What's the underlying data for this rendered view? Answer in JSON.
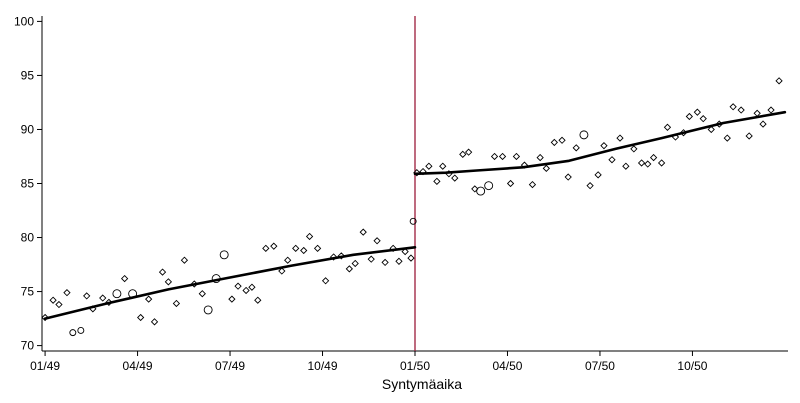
{
  "chart_data": {
    "type": "scatter",
    "xlabel": "Syntymäaika",
    "ylabel": "",
    "x_ticks": [
      {
        "month": 0,
        "label": "01/49"
      },
      {
        "month": 3,
        "label": "04/49"
      },
      {
        "month": 6,
        "label": "07/49"
      },
      {
        "month": 9,
        "label": "10/49"
      },
      {
        "month": 12,
        "label": "01/50"
      },
      {
        "month": 15,
        "label": "04/50"
      },
      {
        "month": 18,
        "label": "07/50"
      },
      {
        "month": 21,
        "label": "10/50"
      }
    ],
    "xlim": [
      -0.1,
      24.1
    ],
    "ylim": [
      69.5,
      100.5
    ],
    "y_ticks": [
      70,
      75,
      80,
      85,
      90,
      95,
      100
    ],
    "grid": false,
    "cutoff_x": 12,
    "cutoff_color": "#9b1b3a",
    "points": [
      {
        "x": 0.0,
        "y": 72.6,
        "shape": "diamond",
        "s": 3
      },
      {
        "x": 0.26,
        "y": 74.2,
        "shape": "diamond",
        "s": 3
      },
      {
        "x": 0.45,
        "y": 73.8,
        "shape": "diamond",
        "s": 3
      },
      {
        "x": 0.71,
        "y": 74.9,
        "shape": "diamond",
        "s": 3
      },
      {
        "x": 0.9,
        "y": 71.2,
        "shape": "circle",
        "s": 3
      },
      {
        "x": 1.16,
        "y": 71.4,
        "shape": "circle",
        "s": 3
      },
      {
        "x": 1.35,
        "y": 74.6,
        "shape": "diamond",
        "s": 3
      },
      {
        "x": 1.55,
        "y": 73.4,
        "shape": "diamond",
        "s": 3
      },
      {
        "x": 1.87,
        "y": 74.4,
        "shape": "diamond",
        "s": 3
      },
      {
        "x": 2.07,
        "y": 74.0,
        "shape": "diamond",
        "s": 3
      },
      {
        "x": 2.33,
        "y": 74.8,
        "shape": "circle",
        "s": 4
      },
      {
        "x": 2.58,
        "y": 76.2,
        "shape": "diamond",
        "s": 3
      },
      {
        "x": 2.84,
        "y": 74.8,
        "shape": "circle",
        "s": 4
      },
      {
        "x": 3.1,
        "y": 72.6,
        "shape": "diamond",
        "s": 3
      },
      {
        "x": 3.36,
        "y": 74.3,
        "shape": "diamond",
        "s": 3
      },
      {
        "x": 3.55,
        "y": 72.2,
        "shape": "diamond",
        "s": 3
      },
      {
        "x": 3.81,
        "y": 76.8,
        "shape": "diamond",
        "s": 3
      },
      {
        "x": 4.0,
        "y": 75.9,
        "shape": "diamond",
        "s": 3
      },
      {
        "x": 4.26,
        "y": 73.9,
        "shape": "diamond",
        "s": 3
      },
      {
        "x": 4.52,
        "y": 77.9,
        "shape": "diamond",
        "s": 3
      },
      {
        "x": 4.84,
        "y": 75.7,
        "shape": "diamond",
        "s": 3
      },
      {
        "x": 5.1,
        "y": 74.8,
        "shape": "diamond",
        "s": 3
      },
      {
        "x": 5.29,
        "y": 73.3,
        "shape": "circle",
        "s": 4
      },
      {
        "x": 5.55,
        "y": 76.2,
        "shape": "circle",
        "s": 4
      },
      {
        "x": 5.81,
        "y": 78.4,
        "shape": "circle",
        "s": 4
      },
      {
        "x": 6.06,
        "y": 74.3,
        "shape": "diamond",
        "s": 3
      },
      {
        "x": 6.26,
        "y": 75.5,
        "shape": "diamond",
        "s": 3
      },
      {
        "x": 6.52,
        "y": 75.1,
        "shape": "diamond",
        "s": 3
      },
      {
        "x": 6.71,
        "y": 75.4,
        "shape": "diamond",
        "s": 3
      },
      {
        "x": 6.9,
        "y": 74.2,
        "shape": "diamond",
        "s": 3
      },
      {
        "x": 7.16,
        "y": 79.0,
        "shape": "diamond",
        "s": 3
      },
      {
        "x": 7.42,
        "y": 79.2,
        "shape": "diamond",
        "s": 3
      },
      {
        "x": 7.68,
        "y": 76.9,
        "shape": "diamond",
        "s": 3
      },
      {
        "x": 7.87,
        "y": 77.9,
        "shape": "diamond",
        "s": 3
      },
      {
        "x": 8.13,
        "y": 79.0,
        "shape": "diamond",
        "s": 3
      },
      {
        "x": 8.39,
        "y": 78.8,
        "shape": "diamond",
        "s": 3
      },
      {
        "x": 8.58,
        "y": 80.1,
        "shape": "diamond",
        "s": 3
      },
      {
        "x": 8.84,
        "y": 79.0,
        "shape": "diamond",
        "s": 3
      },
      {
        "x": 9.1,
        "y": 76.0,
        "shape": "diamond",
        "s": 3
      },
      {
        "x": 9.36,
        "y": 78.2,
        "shape": "diamond",
        "s": 3
      },
      {
        "x": 9.61,
        "y": 78.3,
        "shape": "diamond",
        "s": 3
      },
      {
        "x": 9.87,
        "y": 77.1,
        "shape": "diamond",
        "s": 3
      },
      {
        "x": 10.06,
        "y": 77.6,
        "shape": "diamond",
        "s": 3
      },
      {
        "x": 10.32,
        "y": 80.5,
        "shape": "diamond",
        "s": 3
      },
      {
        "x": 10.58,
        "y": 78.0,
        "shape": "diamond",
        "s": 3
      },
      {
        "x": 10.77,
        "y": 79.7,
        "shape": "diamond",
        "s": 3
      },
      {
        "x": 11.03,
        "y": 77.7,
        "shape": "diamond",
        "s": 3
      },
      {
        "x": 11.29,
        "y": 79.0,
        "shape": "diamond",
        "s": 3
      },
      {
        "x": 11.48,
        "y": 77.8,
        "shape": "diamond",
        "s": 3
      },
      {
        "x": 11.68,
        "y": 78.7,
        "shape": "diamond",
        "s": 3
      },
      {
        "x": 11.87,
        "y": 78.1,
        "shape": "diamond",
        "s": 3
      },
      {
        "x": 11.94,
        "y": 81.5,
        "shape": "circle",
        "s": 3
      },
      {
        "x": 12.06,
        "y": 86.0,
        "shape": "diamond",
        "s": 3
      },
      {
        "x": 12.26,
        "y": 86.1,
        "shape": "diamond",
        "s": 3
      },
      {
        "x": 12.45,
        "y": 86.6,
        "shape": "diamond",
        "s": 3
      },
      {
        "x": 12.71,
        "y": 85.2,
        "shape": "diamond",
        "s": 3
      },
      {
        "x": 12.9,
        "y": 86.6,
        "shape": "diamond",
        "s": 3
      },
      {
        "x": 13.1,
        "y": 85.9,
        "shape": "diamond",
        "s": 3
      },
      {
        "x": 13.29,
        "y": 85.5,
        "shape": "diamond",
        "s": 3
      },
      {
        "x": 13.55,
        "y": 87.7,
        "shape": "diamond",
        "s": 3
      },
      {
        "x": 13.74,
        "y": 87.9,
        "shape": "diamond",
        "s": 3
      },
      {
        "x": 13.94,
        "y": 84.5,
        "shape": "diamond",
        "s": 3
      },
      {
        "x": 14.13,
        "y": 84.3,
        "shape": "circle",
        "s": 4
      },
      {
        "x": 14.39,
        "y": 84.8,
        "shape": "circle",
        "s": 4
      },
      {
        "x": 14.58,
        "y": 87.5,
        "shape": "diamond",
        "s": 3
      },
      {
        "x": 14.84,
        "y": 87.5,
        "shape": "diamond",
        "s": 3
      },
      {
        "x": 15.1,
        "y": 85.0,
        "shape": "diamond",
        "s": 3
      },
      {
        "x": 15.29,
        "y": 87.5,
        "shape": "diamond",
        "s": 3
      },
      {
        "x": 15.55,
        "y": 86.7,
        "shape": "diamond",
        "s": 3
      },
      {
        "x": 15.81,
        "y": 84.9,
        "shape": "diamond",
        "s": 3
      },
      {
        "x": 16.06,
        "y": 87.4,
        "shape": "diamond",
        "s": 3
      },
      {
        "x": 16.26,
        "y": 86.4,
        "shape": "diamond",
        "s": 3
      },
      {
        "x": 16.52,
        "y": 88.8,
        "shape": "diamond",
        "s": 3
      },
      {
        "x": 16.77,
        "y": 89.0,
        "shape": "diamond",
        "s": 3
      },
      {
        "x": 16.97,
        "y": 85.6,
        "shape": "diamond",
        "s": 3
      },
      {
        "x": 17.23,
        "y": 88.3,
        "shape": "diamond",
        "s": 3
      },
      {
        "x": 17.48,
        "y": 89.5,
        "shape": "circle",
        "s": 4
      },
      {
        "x": 17.68,
        "y": 84.8,
        "shape": "diamond",
        "s": 3
      },
      {
        "x": 17.94,
        "y": 85.8,
        "shape": "diamond",
        "s": 3
      },
      {
        "x": 18.13,
        "y": 88.5,
        "shape": "diamond",
        "s": 3
      },
      {
        "x": 18.39,
        "y": 87.2,
        "shape": "diamond",
        "s": 3
      },
      {
        "x": 18.65,
        "y": 89.2,
        "shape": "diamond",
        "s": 3
      },
      {
        "x": 18.84,
        "y": 86.6,
        "shape": "diamond",
        "s": 3
      },
      {
        "x": 19.1,
        "y": 88.2,
        "shape": "diamond",
        "s": 3
      },
      {
        "x": 19.35,
        "y": 86.9,
        "shape": "diamond",
        "s": 3
      },
      {
        "x": 19.55,
        "y": 86.8,
        "shape": "diamond",
        "s": 3
      },
      {
        "x": 19.74,
        "y": 87.4,
        "shape": "diamond",
        "s": 3
      },
      {
        "x": 20.0,
        "y": 86.9,
        "shape": "diamond",
        "s": 3
      },
      {
        "x": 20.19,
        "y": 90.2,
        "shape": "diamond",
        "s": 3
      },
      {
        "x": 20.45,
        "y": 89.3,
        "shape": "diamond",
        "s": 3
      },
      {
        "x": 20.71,
        "y": 89.7,
        "shape": "diamond",
        "s": 3
      },
      {
        "x": 20.9,
        "y": 91.2,
        "shape": "diamond",
        "s": 3
      },
      {
        "x": 21.16,
        "y": 91.6,
        "shape": "diamond",
        "s": 3
      },
      {
        "x": 21.35,
        "y": 91.0,
        "shape": "diamond",
        "s": 3
      },
      {
        "x": 21.61,
        "y": 90.0,
        "shape": "diamond",
        "s": 3
      },
      {
        "x": 21.87,
        "y": 90.5,
        "shape": "diamond",
        "s": 3
      },
      {
        "x": 22.13,
        "y": 89.2,
        "shape": "diamond",
        "s": 3
      },
      {
        "x": 22.32,
        "y": 92.1,
        "shape": "diamond",
        "s": 3
      },
      {
        "x": 22.58,
        "y": 91.8,
        "shape": "diamond",
        "s": 3
      },
      {
        "x": 22.84,
        "y": 89.4,
        "shape": "diamond",
        "s": 3
      },
      {
        "x": 23.1,
        "y": 91.5,
        "shape": "diamond",
        "s": 3
      },
      {
        "x": 23.29,
        "y": 90.5,
        "shape": "diamond",
        "s": 3
      },
      {
        "x": 23.55,
        "y": 91.8,
        "shape": "diamond",
        "s": 3
      },
      {
        "x": 23.81,
        "y": 94.5,
        "shape": "diamond",
        "s": 3
      }
    ],
    "fit_lines": [
      {
        "segment": "before_cutoff",
        "points": [
          [
            0.0,
            72.5
          ],
          [
            2.0,
            73.9
          ],
          [
            4.0,
            75.2
          ],
          [
            6.0,
            76.3
          ],
          [
            8.0,
            77.4
          ],
          [
            10.0,
            78.4
          ],
          [
            12.0,
            79.1
          ]
        ]
      },
      {
        "segment": "after_cutoff",
        "points": [
          [
            12.0,
            85.9
          ],
          [
            13.0,
            86.0
          ],
          [
            14.0,
            86.2
          ],
          [
            15.5,
            86.5
          ],
          [
            17.0,
            87.1
          ],
          [
            18.5,
            88.2
          ],
          [
            20.0,
            89.2
          ],
          [
            22.0,
            90.6
          ],
          [
            24.0,
            91.6
          ]
        ]
      }
    ]
  }
}
